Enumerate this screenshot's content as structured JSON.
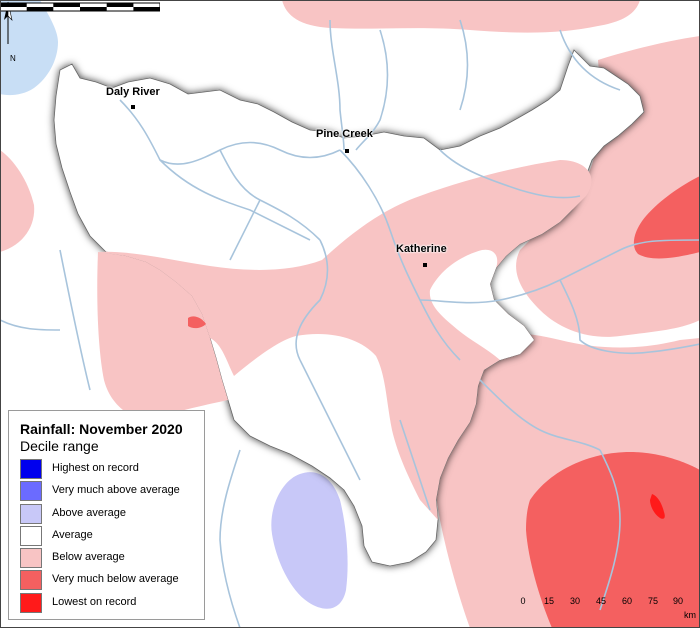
{
  "legend": {
    "title": "Rainfall: November 2020",
    "subtitle": "Decile range",
    "items": [
      {
        "label": "Highest on record",
        "color": "#0000ee"
      },
      {
        "label": "Very much above average",
        "color": "#6b6bff"
      },
      {
        "label": "Above average",
        "color": "#c8c8f8"
      },
      {
        "label": "Average",
        "color": "#ffffff"
      },
      {
        "label": "Below average",
        "color": "#f8c4c4"
      },
      {
        "label": "Very much below average",
        "color": "#f46060"
      },
      {
        "label": "Lowest on record",
        "color": "#ff1a1a"
      }
    ]
  },
  "towns": [
    {
      "name": "Daly River"
    },
    {
      "name": "Pine Creek"
    },
    {
      "name": "Katherine"
    }
  ],
  "north_arrow": {
    "label": "N"
  },
  "scale": {
    "ticks": [
      "0",
      "15",
      "30",
      "45",
      "60",
      "75",
      "90"
    ],
    "unit": "km"
  },
  "colors": {
    "water": "#c8def5",
    "rivers": "#a8c4dc",
    "boundary_shadow": "#555555"
  }
}
